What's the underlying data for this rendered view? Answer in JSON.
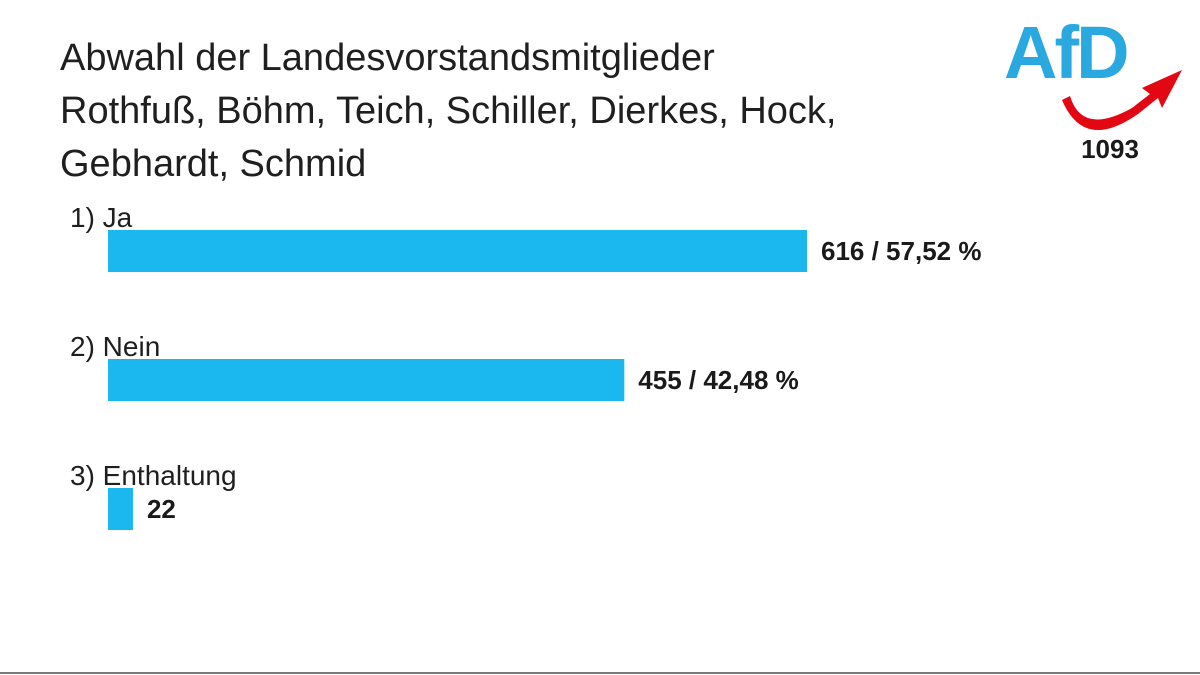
{
  "logo": {
    "text": "AfD",
    "primary_color": "#29a9e0",
    "accent_color": "#e30613"
  },
  "total_votes": "1093",
  "chart_data": {
    "type": "bar",
    "orientation": "horizontal",
    "title_lines": [
      "Abwahl der Landesvorstandsmitglieder",
      "Rothfuß, Böhm, Teich, Schiller, Dierkes, Hock,",
      "Gebhardt, Schmid"
    ],
    "categories": [
      "1) Ja",
      "2) Nein",
      "3) Enthaltung"
    ],
    "values": [
      616,
      455,
      22
    ],
    "value_labels": [
      "616 / 57,52 %",
      "455 / 42,48 %",
      "22"
    ],
    "xlim": [
      0,
      616
    ],
    "bar_color": "#1bb8f0",
    "grid": false,
    "legend": "none"
  }
}
